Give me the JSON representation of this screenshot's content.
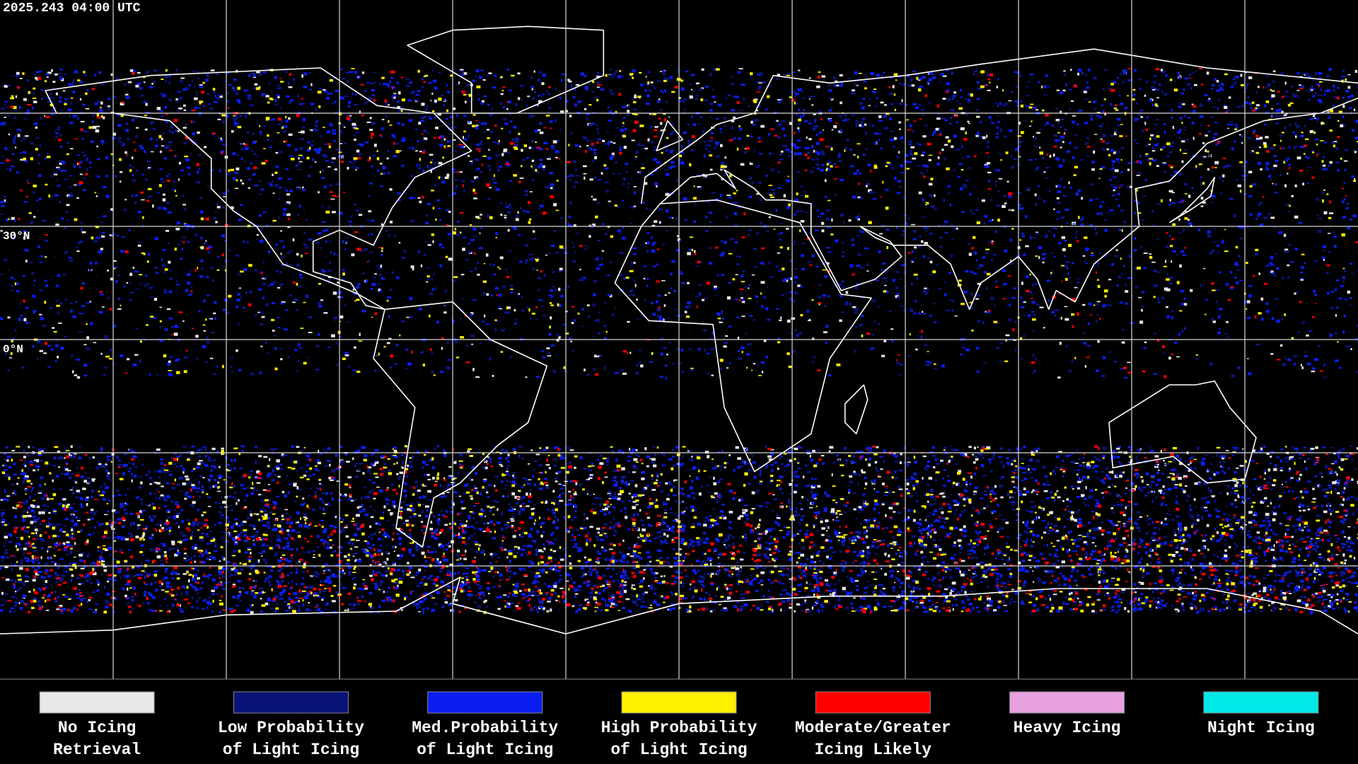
{
  "header": {
    "timestamp": "2025.243 04:00 UTC"
  },
  "map": {
    "latitude_labels": [
      "30°N",
      "0°N"
    ]
  },
  "legend": {
    "items": [
      {
        "label": [
          "No Icing",
          "Retrieval"
        ],
        "color": "#e8e8e8"
      },
      {
        "label": [
          "Low Probability",
          "of Light Icing"
        ],
        "color": "#0a1478"
      },
      {
        "label": [
          "Med.Probability",
          "of Light Icing"
        ],
        "color": "#0a1ef0"
      },
      {
        "label": [
          "High Probability",
          "of Light Icing"
        ],
        "color": "#fff000"
      },
      {
        "label": [
          "Moderate/Greater",
          "Icing Likely"
        ],
        "color": "#ff0000"
      },
      {
        "label": [
          "Heavy Icing"
        ],
        "color": "#e8a0e0"
      },
      {
        "label": [
          "Night Icing"
        ],
        "color": "#00e8e8"
      }
    ]
  }
}
